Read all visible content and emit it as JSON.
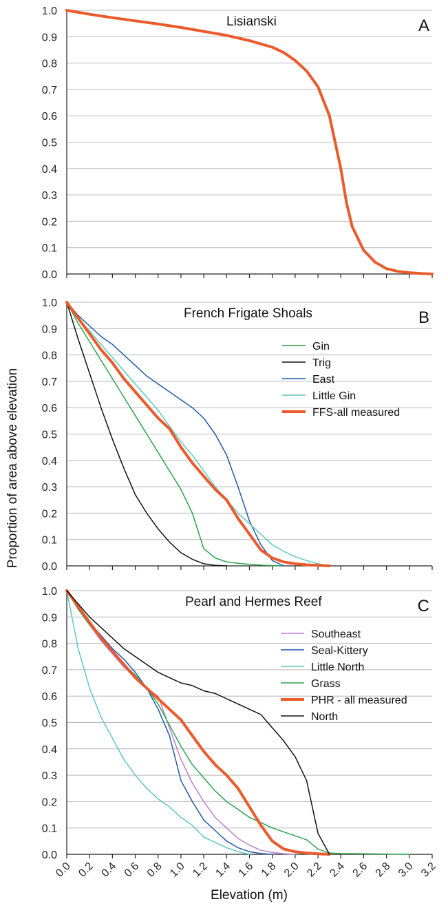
{
  "figure": {
    "ylabel": "Proportion of area above elevation",
    "xlabel": "Elevation (m)"
  },
  "chart_data": [
    {
      "panel": "A",
      "type": "line",
      "title": "Lisianski",
      "xlim": [
        0,
        3.2
      ],
      "ylim": [
        0,
        1
      ],
      "grid": true,
      "legend": "none",
      "series": [
        {
          "color": "#ea5a2a",
          "width": 4,
          "x": [
            0,
            0.2,
            0.4,
            0.6,
            0.8,
            1.0,
            1.2,
            1.4,
            1.6,
            1.8,
            1.9,
            2.0,
            2.1,
            2.2,
            2.3,
            2.4,
            2.45,
            2.5,
            2.6,
            2.7,
            2.8,
            2.9,
            3.0,
            3.1,
            3.2
          ],
          "y": [
            1.0,
            0.985,
            0.972,
            0.96,
            0.948,
            0.935,
            0.92,
            0.905,
            0.885,
            0.86,
            0.84,
            0.81,
            0.77,
            0.71,
            0.6,
            0.4,
            0.27,
            0.18,
            0.09,
            0.045,
            0.02,
            0.01,
            0.005,
            0.002,
            0.0
          ]
        }
      ]
    },
    {
      "panel": "B",
      "type": "line",
      "title": "French Frigate Shoals",
      "xlim": [
        0,
        3.2
      ],
      "ylim": [
        0,
        1
      ],
      "grid": true,
      "legend": "right",
      "series": [
        {
          "name": "Gin",
          "color": "#2ca24f",
          "width": 1.5,
          "x": [
            0,
            0.1,
            0.2,
            0.3,
            0.4,
            0.5,
            0.6,
            0.7,
            0.8,
            0.9,
            1.0,
            1.1,
            1.2,
            1.3,
            1.4,
            1.5,
            1.6,
            1.7,
            1.8,
            1.9
          ],
          "y": [
            1.0,
            0.92,
            0.85,
            0.78,
            0.71,
            0.64,
            0.57,
            0.5,
            0.43,
            0.36,
            0.29,
            0.2,
            0.065,
            0.03,
            0.015,
            0.01,
            0.006,
            0.003,
            0.001,
            0.0
          ]
        },
        {
          "name": "Trig",
          "color": "#111111",
          "width": 1.5,
          "x": [
            0,
            0.1,
            0.2,
            0.3,
            0.4,
            0.5,
            0.6,
            0.7,
            0.8,
            0.9,
            1.0,
            1.1,
            1.2,
            1.3,
            1.4
          ],
          "y": [
            1.0,
            0.86,
            0.73,
            0.6,
            0.48,
            0.37,
            0.27,
            0.2,
            0.14,
            0.09,
            0.05,
            0.025,
            0.008,
            0.002,
            0.0
          ]
        },
        {
          "name": "East",
          "color": "#1f5aa8",
          "width": 1.5,
          "x": [
            0,
            0.1,
            0.2,
            0.3,
            0.4,
            0.5,
            0.6,
            0.7,
            0.8,
            0.9,
            1.0,
            1.1,
            1.2,
            1.3,
            1.4,
            1.5,
            1.6,
            1.7,
            1.8,
            1.9
          ],
          "y": [
            1.0,
            0.95,
            0.91,
            0.87,
            0.84,
            0.8,
            0.76,
            0.72,
            0.69,
            0.66,
            0.63,
            0.6,
            0.56,
            0.5,
            0.42,
            0.3,
            0.17,
            0.08,
            0.02,
            0.0
          ]
        },
        {
          "name": "Little Gin",
          "color": "#5cc8c0",
          "width": 1.5,
          "x": [
            0,
            0.1,
            0.2,
            0.3,
            0.4,
            0.5,
            0.6,
            0.7,
            0.8,
            0.9,
            1.0,
            1.1,
            1.2,
            1.3,
            1.4,
            1.5,
            1.6,
            1.7,
            1.8,
            1.9,
            2.0,
            2.1,
            2.2,
            2.3
          ],
          "y": [
            1.0,
            0.94,
            0.89,
            0.84,
            0.79,
            0.74,
            0.69,
            0.64,
            0.59,
            0.53,
            0.47,
            0.42,
            0.36,
            0.3,
            0.25,
            0.2,
            0.16,
            0.12,
            0.08,
            0.055,
            0.035,
            0.02,
            0.008,
            0.0
          ]
        },
        {
          "name": "FFS-all measured",
          "color": "#ea5a2a",
          "width": 4,
          "x": [
            0,
            0.1,
            0.2,
            0.3,
            0.4,
            0.5,
            0.6,
            0.7,
            0.8,
            0.9,
            1.0,
            1.1,
            1.2,
            1.3,
            1.4,
            1.5,
            1.6,
            1.7,
            1.8,
            1.9,
            2.0,
            2.1,
            2.2,
            2.3
          ],
          "y": [
            1.0,
            0.94,
            0.88,
            0.82,
            0.77,
            0.71,
            0.66,
            0.61,
            0.56,
            0.52,
            0.45,
            0.39,
            0.34,
            0.29,
            0.25,
            0.18,
            0.12,
            0.06,
            0.03,
            0.015,
            0.008,
            0.004,
            0.002,
            0.0
          ]
        }
      ]
    },
    {
      "panel": "C",
      "type": "line",
      "title": "Pearl and Hermes Reef",
      "xlim": [
        0,
        3.2
      ],
      "ylim": [
        0,
        1
      ],
      "grid": true,
      "legend": "right",
      "series": [
        {
          "name": "Southeast",
          "color": "#b87fcf",
          "width": 1.5,
          "x": [
            0,
            0.1,
            0.2,
            0.3,
            0.4,
            0.5,
            0.6,
            0.7,
            0.8,
            0.9,
            1.0,
            1.1,
            1.2,
            1.3,
            1.4,
            1.5,
            1.6,
            1.7,
            1.8,
            1.9,
            2.0
          ],
          "y": [
            1.0,
            0.93,
            0.87,
            0.81,
            0.76,
            0.71,
            0.67,
            0.63,
            0.6,
            0.48,
            0.36,
            0.27,
            0.2,
            0.14,
            0.1,
            0.06,
            0.035,
            0.015,
            0.007,
            0.002,
            0.0
          ]
        },
        {
          "name": "Seal-Kittery",
          "color": "#1f5aa8",
          "width": 1.5,
          "x": [
            0,
            0.1,
            0.2,
            0.3,
            0.4,
            0.5,
            0.6,
            0.7,
            0.8,
            0.9,
            1.0,
            1.1,
            1.2,
            1.3,
            1.4,
            1.5,
            1.6,
            1.7,
            1.8
          ],
          "y": [
            1.0,
            0.94,
            0.88,
            0.83,
            0.78,
            0.74,
            0.69,
            0.63,
            0.55,
            0.45,
            0.28,
            0.2,
            0.13,
            0.09,
            0.05,
            0.025,
            0.01,
            0.003,
            0.0
          ]
        },
        {
          "name": "Little North",
          "color": "#5cc8c0",
          "width": 1.5,
          "x": [
            0,
            0.1,
            0.2,
            0.3,
            0.4,
            0.5,
            0.6,
            0.7,
            0.8,
            0.9,
            1.0,
            1.1,
            1.2,
            1.3,
            1.4,
            1.5,
            1.6
          ],
          "y": [
            1.0,
            0.78,
            0.63,
            0.52,
            0.44,
            0.36,
            0.3,
            0.25,
            0.21,
            0.18,
            0.14,
            0.11,
            0.065,
            0.045,
            0.025,
            0.01,
            0.0
          ]
        },
        {
          "name": "Grass",
          "color": "#2ca24f",
          "width": 1.5,
          "x": [
            0,
            0.1,
            0.2,
            0.3,
            0.4,
            0.5,
            0.6,
            0.7,
            0.8,
            0.9,
            1.0,
            1.1,
            1.2,
            1.3,
            1.4,
            1.5,
            1.6,
            1.7,
            1.8,
            1.9,
            2.0,
            2.1,
            2.2,
            2.3,
            2.4,
            2.6,
            2.8,
            3.0
          ],
          "y": [
            1.0,
            0.93,
            0.87,
            0.82,
            0.77,
            0.72,
            0.68,
            0.63,
            0.57,
            0.49,
            0.41,
            0.34,
            0.29,
            0.24,
            0.2,
            0.17,
            0.14,
            0.12,
            0.1,
            0.085,
            0.07,
            0.055,
            0.02,
            0.005,
            0.003,
            0.002,
            0.001,
            0.0
          ]
        },
        {
          "name": "PHR - all measured",
          "color": "#ea5a2a",
          "width": 4,
          "x": [
            0,
            0.1,
            0.2,
            0.3,
            0.4,
            0.5,
            0.6,
            0.7,
            0.8,
            0.9,
            1.0,
            1.1,
            1.2,
            1.3,
            1.4,
            1.5,
            1.6,
            1.7,
            1.8,
            1.9,
            2.0,
            2.1,
            2.2,
            2.3
          ],
          "y": [
            1.0,
            0.94,
            0.88,
            0.82,
            0.77,
            0.72,
            0.67,
            0.63,
            0.59,
            0.55,
            0.51,
            0.45,
            0.39,
            0.34,
            0.3,
            0.25,
            0.18,
            0.11,
            0.05,
            0.02,
            0.01,
            0.005,
            0.002,
            0.0
          ]
        },
        {
          "name": "North",
          "color": "#111111",
          "width": 1.5,
          "x": [
            0,
            0.1,
            0.2,
            0.3,
            0.4,
            0.5,
            0.6,
            0.7,
            0.8,
            0.9,
            1.0,
            1.1,
            1.2,
            1.3,
            1.4,
            1.5,
            1.6,
            1.7,
            1.8,
            1.9,
            2.0,
            2.1,
            2.2,
            2.3
          ],
          "y": [
            1.0,
            0.95,
            0.9,
            0.86,
            0.82,
            0.78,
            0.75,
            0.72,
            0.69,
            0.67,
            0.65,
            0.64,
            0.62,
            0.61,
            0.59,
            0.57,
            0.55,
            0.53,
            0.48,
            0.43,
            0.37,
            0.28,
            0.08,
            0.0
          ]
        }
      ]
    }
  ],
  "panel_letters": [
    "A",
    "B",
    "C"
  ],
  "y_ticks": [
    "0.0",
    "0.1",
    "0.2",
    "0.3",
    "0.4",
    "0.5",
    "0.6",
    "0.7",
    "0.8",
    "0.9",
    "1.0"
  ],
  "x_ticks": [
    "0.0",
    "0.2",
    "0.4",
    "0.6",
    "0.8",
    "1.0",
    "1.2",
    "1.4",
    "1.6",
    "1.8",
    "2.0",
    "2.2",
    "2.4",
    "2.6",
    "2.8",
    "3.0",
    "3.2"
  ]
}
